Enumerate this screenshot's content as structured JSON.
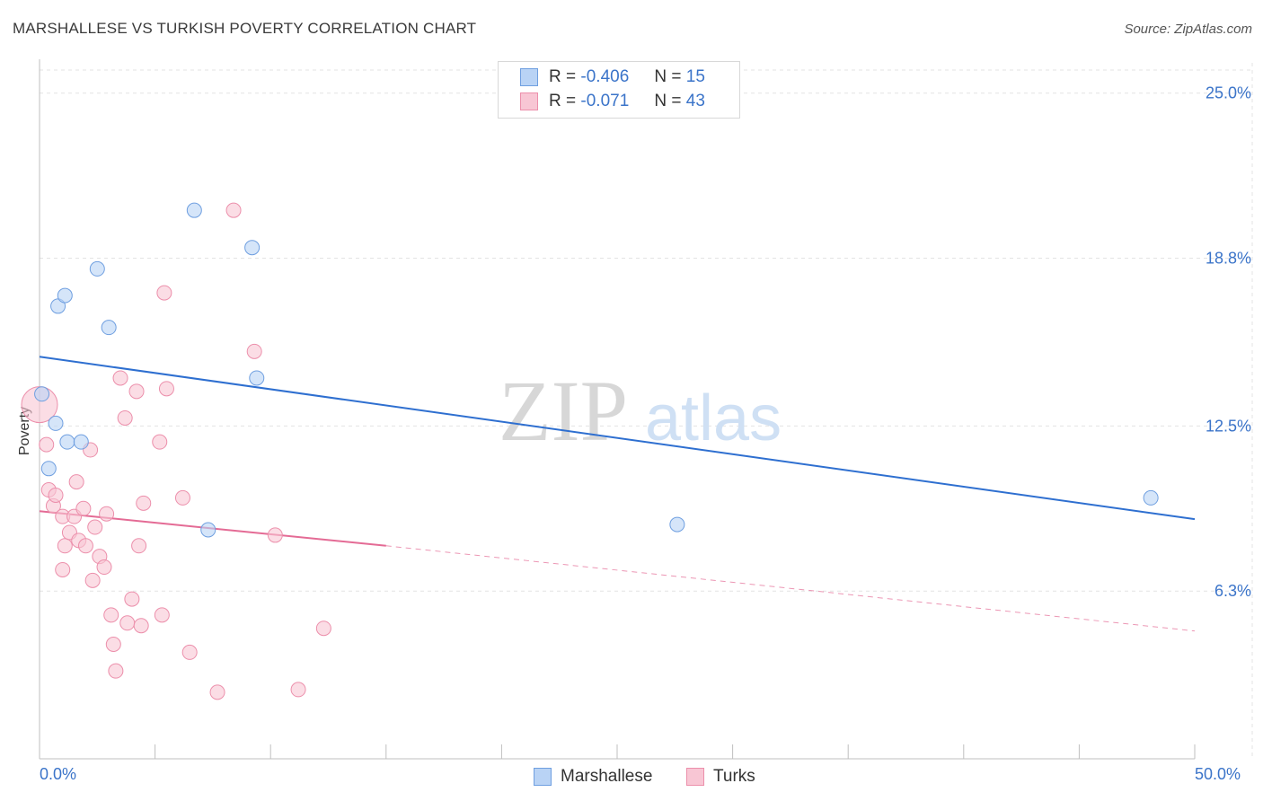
{
  "title": "MARSHALLESE VS TURKISH POVERTY CORRELATION CHART",
  "source": "Source: ZipAtlas.com",
  "watermark": {
    "zip": "ZIP",
    "atlas": "atlas"
  },
  "legend": {
    "rows": [
      {
        "r_label": "R =",
        "r_value": "-0.406",
        "n_label": "N =",
        "n_value": "15"
      },
      {
        "r_label": "R =",
        "r_value": "-0.071",
        "n_label": "N =",
        "n_value": "43"
      }
    ],
    "bottom": [
      "Marshallese",
      "Turks"
    ]
  },
  "colors": {
    "marshallese_fill": "#b9d3f5",
    "marshallese_stroke": "#6f9fe0",
    "marshallese_line": "#2e6fd0",
    "turks_fill": "#f8c6d4",
    "turks_stroke": "#ec8fab",
    "turks_line": "#e46b95",
    "axis_text": "#3b74c9",
    "grid": "#e3e3e3"
  },
  "chart_data": {
    "type": "scatter",
    "title": "MARSHALLESE VS TURKISH POVERTY CORRELATION CHART",
    "xlabel": "",
    "ylabel": "Poverty",
    "xlim": [
      0,
      50
    ],
    "ylim": [
      0,
      25.8
    ],
    "x_tick_labels": [
      "0.0%",
      "50.0%"
    ],
    "y_ticks": [
      6.3,
      12.5,
      18.8,
      25.0
    ],
    "y_tick_labels": [
      "6.3%",
      "12.5%",
      "18.8%",
      "25.0%"
    ],
    "grid": true,
    "legend_position": "top-center",
    "series": [
      {
        "name": "Marshallese",
        "r": -0.406,
        "n": 15,
        "points": [
          [
            0.1,
            13.7
          ],
          [
            0.7,
            12.6
          ],
          [
            0.4,
            10.9
          ],
          [
            0.8,
            17.0
          ],
          [
            1.1,
            17.4
          ],
          [
            1.2,
            11.9
          ],
          [
            1.8,
            11.9
          ],
          [
            2.5,
            18.4
          ],
          [
            3.0,
            16.2
          ],
          [
            6.7,
            20.6
          ],
          [
            9.2,
            19.2
          ],
          [
            9.4,
            14.3
          ],
          [
            7.3,
            8.6
          ],
          [
            27.6,
            8.8
          ],
          [
            48.1,
            9.8
          ]
        ],
        "trend": {
          "x": [
            0,
            50
          ],
          "y": [
            15.1,
            9.0
          ]
        }
      },
      {
        "name": "Turks",
        "r": -0.071,
        "n": 43,
        "points": [
          [
            0.0,
            13.3
          ],
          [
            0.3,
            11.8
          ],
          [
            0.4,
            10.1
          ],
          [
            0.6,
            9.5
          ],
          [
            0.7,
            9.9
          ],
          [
            1.0,
            7.1
          ],
          [
            1.0,
            9.1
          ],
          [
            1.1,
            8.0
          ],
          [
            1.3,
            8.5
          ],
          [
            1.5,
            9.1
          ],
          [
            1.6,
            10.4
          ],
          [
            1.7,
            8.2
          ],
          [
            1.9,
            9.4
          ],
          [
            2.0,
            8.0
          ],
          [
            2.2,
            11.6
          ],
          [
            2.3,
            6.7
          ],
          [
            2.4,
            8.7
          ],
          [
            2.6,
            7.6
          ],
          [
            2.8,
            7.2
          ],
          [
            2.9,
            9.2
          ],
          [
            3.1,
            5.4
          ],
          [
            3.2,
            4.3
          ],
          [
            3.3,
            3.3
          ],
          [
            3.5,
            14.3
          ],
          [
            3.7,
            12.8
          ],
          [
            3.8,
            5.1
          ],
          [
            4.0,
            6.0
          ],
          [
            4.2,
            13.8
          ],
          [
            4.3,
            8.0
          ],
          [
            4.4,
            5.0
          ],
          [
            4.5,
            9.6
          ],
          [
            5.2,
            11.9
          ],
          [
            5.3,
            5.4
          ],
          [
            5.4,
            17.5
          ],
          [
            5.5,
            13.9
          ],
          [
            6.2,
            9.8
          ],
          [
            6.5,
            4.0
          ],
          [
            7.7,
            2.5
          ],
          [
            8.4,
            20.6
          ],
          [
            9.3,
            15.3
          ],
          [
            10.2,
            8.4
          ],
          [
            11.2,
            2.6
          ],
          [
            12.3,
            4.9
          ]
        ],
        "trend_solid": {
          "x": [
            0,
            15
          ],
          "y": [
            9.3,
            8.0
          ]
        },
        "trend_dashed": {
          "x": [
            15,
            50
          ],
          "y": [
            8.0,
            4.8
          ]
        }
      }
    ]
  }
}
